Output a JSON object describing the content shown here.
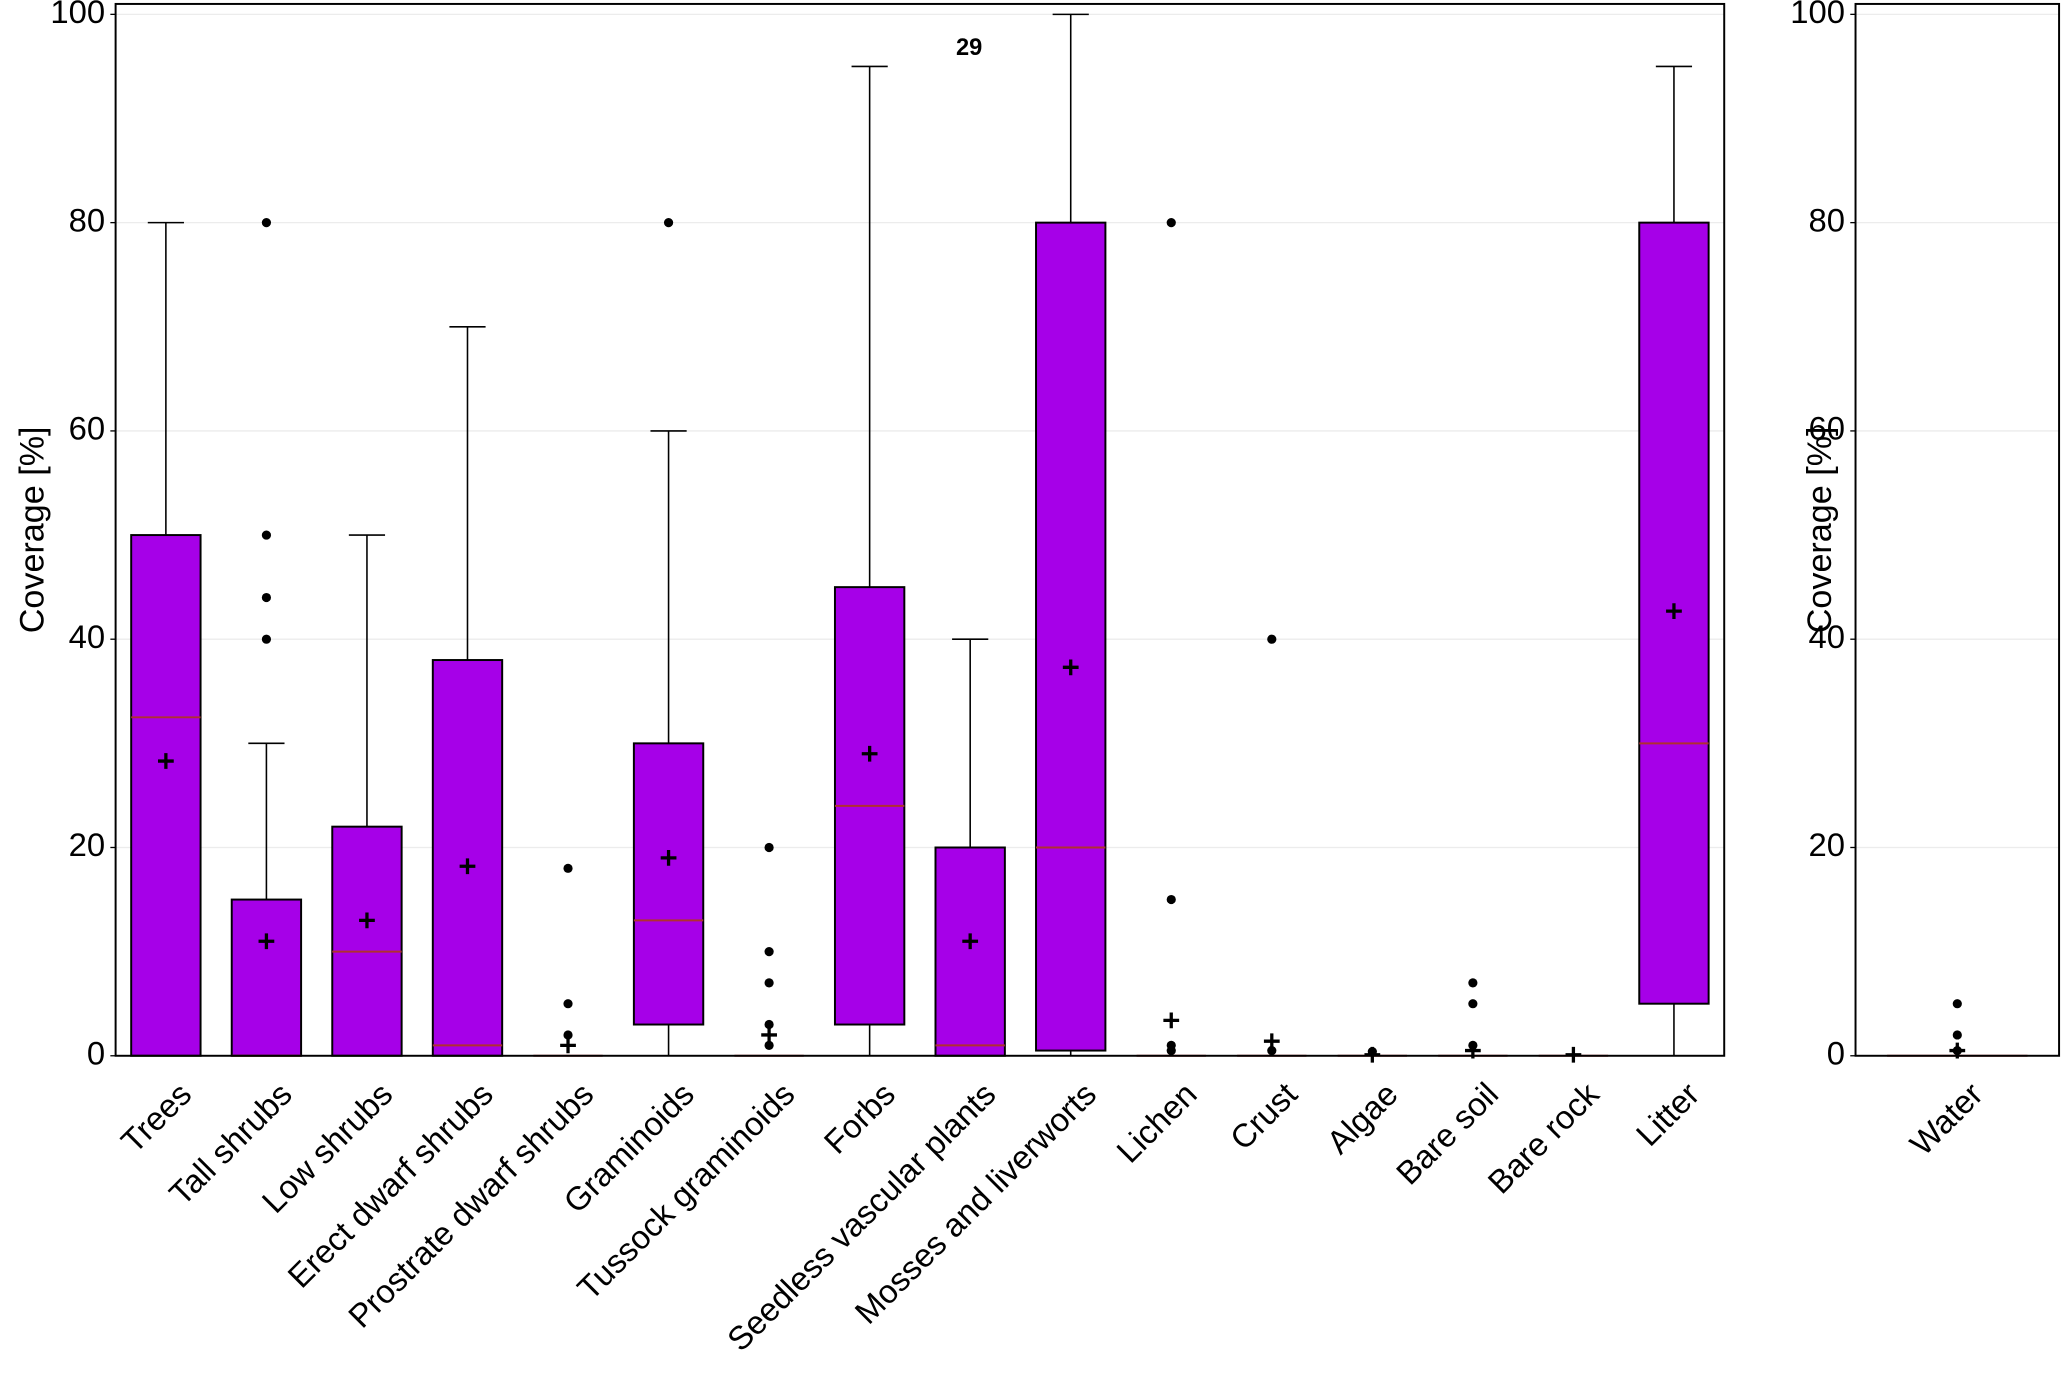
{
  "chart_data": [
    {
      "type": "box",
      "ylabel": "Coverage [%]",
      "annotation": "29",
      "ylim": [
        0,
        101
      ],
      "yticks": [
        0,
        20,
        40,
        60,
        80,
        100
      ],
      "grid": true,
      "color": "#a600e8",
      "median_color": "#b03030",
      "categories": [
        "Trees",
        "Tall shrubs",
        "Low shrubs",
        "Erect dwarf shrubs",
        "Prostrate dwarf shrubs",
        "Graminoids",
        "Tussock graminoids",
        "Forbs",
        "Seedless vascular plants",
        "Mosses and liverworts",
        "Lichen",
        "Crust",
        "Algae",
        "Bare soil",
        "Bare rock",
        "Litter"
      ],
      "boxes": [
        {
          "whislo": 0,
          "q1": 0,
          "med": 32.5,
          "q3": 50,
          "whishi": 80,
          "mean": 28.3,
          "fliers": []
        },
        {
          "whislo": 0,
          "q1": 0,
          "med": 0,
          "q3": 15,
          "whishi": 30,
          "mean": 11,
          "fliers": [
            40,
            44,
            50,
            80
          ]
        },
        {
          "whislo": 0,
          "q1": 0,
          "med": 10,
          "q3": 22,
          "whishi": 50,
          "mean": 13,
          "fliers": []
        },
        {
          "whislo": 0,
          "q1": 0,
          "med": 1,
          "q3": 38,
          "whishi": 70,
          "mean": 18.2,
          "fliers": []
        },
        {
          "whislo": 0,
          "q1": 0,
          "med": 0,
          "q3": 0,
          "whishi": 0,
          "mean": 1,
          "fliers": [
            2,
            5,
            18
          ]
        },
        {
          "whislo": 0,
          "q1": 3,
          "med": 13,
          "q3": 30,
          "whishi": 60,
          "mean": 19,
          "fliers": [
            80
          ]
        },
        {
          "whislo": 0,
          "q1": 0,
          "med": 0,
          "q3": 0,
          "whishi": 0,
          "mean": 2,
          "fliers": [
            1,
            3,
            7,
            10,
            20
          ]
        },
        {
          "whislo": 0,
          "q1": 3,
          "med": 24,
          "q3": 45,
          "whishi": 95,
          "mean": 29,
          "fliers": []
        },
        {
          "whislo": 0,
          "q1": 0,
          "med": 1,
          "q3": 20,
          "whishi": 40,
          "mean": 11,
          "fliers": []
        },
        {
          "whislo": 0,
          "q1": 0.5,
          "med": 20,
          "q3": 80,
          "whishi": 100,
          "mean": 37.3,
          "fliers": []
        },
        {
          "whislo": 0,
          "q1": 0,
          "med": 0,
          "q3": 0,
          "whishi": 0,
          "mean": 3.4,
          "fliers": [
            0.5,
            1,
            15,
            80
          ]
        },
        {
          "whislo": 0,
          "q1": 0,
          "med": 0,
          "q3": 0,
          "whishi": 0,
          "mean": 1.4,
          "fliers": [
            0.5,
            40
          ]
        },
        {
          "whislo": 0,
          "q1": 0,
          "med": 0,
          "q3": 0,
          "whishi": 0,
          "mean": 0.1,
          "fliers": [
            0.4
          ]
        },
        {
          "whislo": 0,
          "q1": 0,
          "med": 0,
          "q3": 0,
          "whishi": 0,
          "mean": 0.5,
          "fliers": [
            1,
            5,
            7
          ]
        },
        {
          "whislo": 0,
          "q1": 0,
          "med": 0,
          "q3": 0,
          "whishi": 0,
          "mean": 0.1,
          "fliers": []
        },
        {
          "whislo": 0,
          "q1": 5,
          "med": 30,
          "q3": 80,
          "whishi": 95,
          "mean": 42.7,
          "fliers": []
        }
      ]
    },
    {
      "type": "box",
      "ylabel": "Coverage [%]",
      "ylim": [
        0,
        101
      ],
      "yticks": [
        0,
        20,
        40,
        60,
        80,
        100
      ],
      "grid": true,
      "color": "#a600e8",
      "median_color": "#b03030",
      "categories": [
        "Water"
      ],
      "boxes": [
        {
          "whislo": 0,
          "q1": 0,
          "med": 0,
          "q3": 0,
          "whishi": 0,
          "mean": 0.5,
          "fliers": [
            0.5,
            2,
            5
          ]
        }
      ]
    }
  ]
}
